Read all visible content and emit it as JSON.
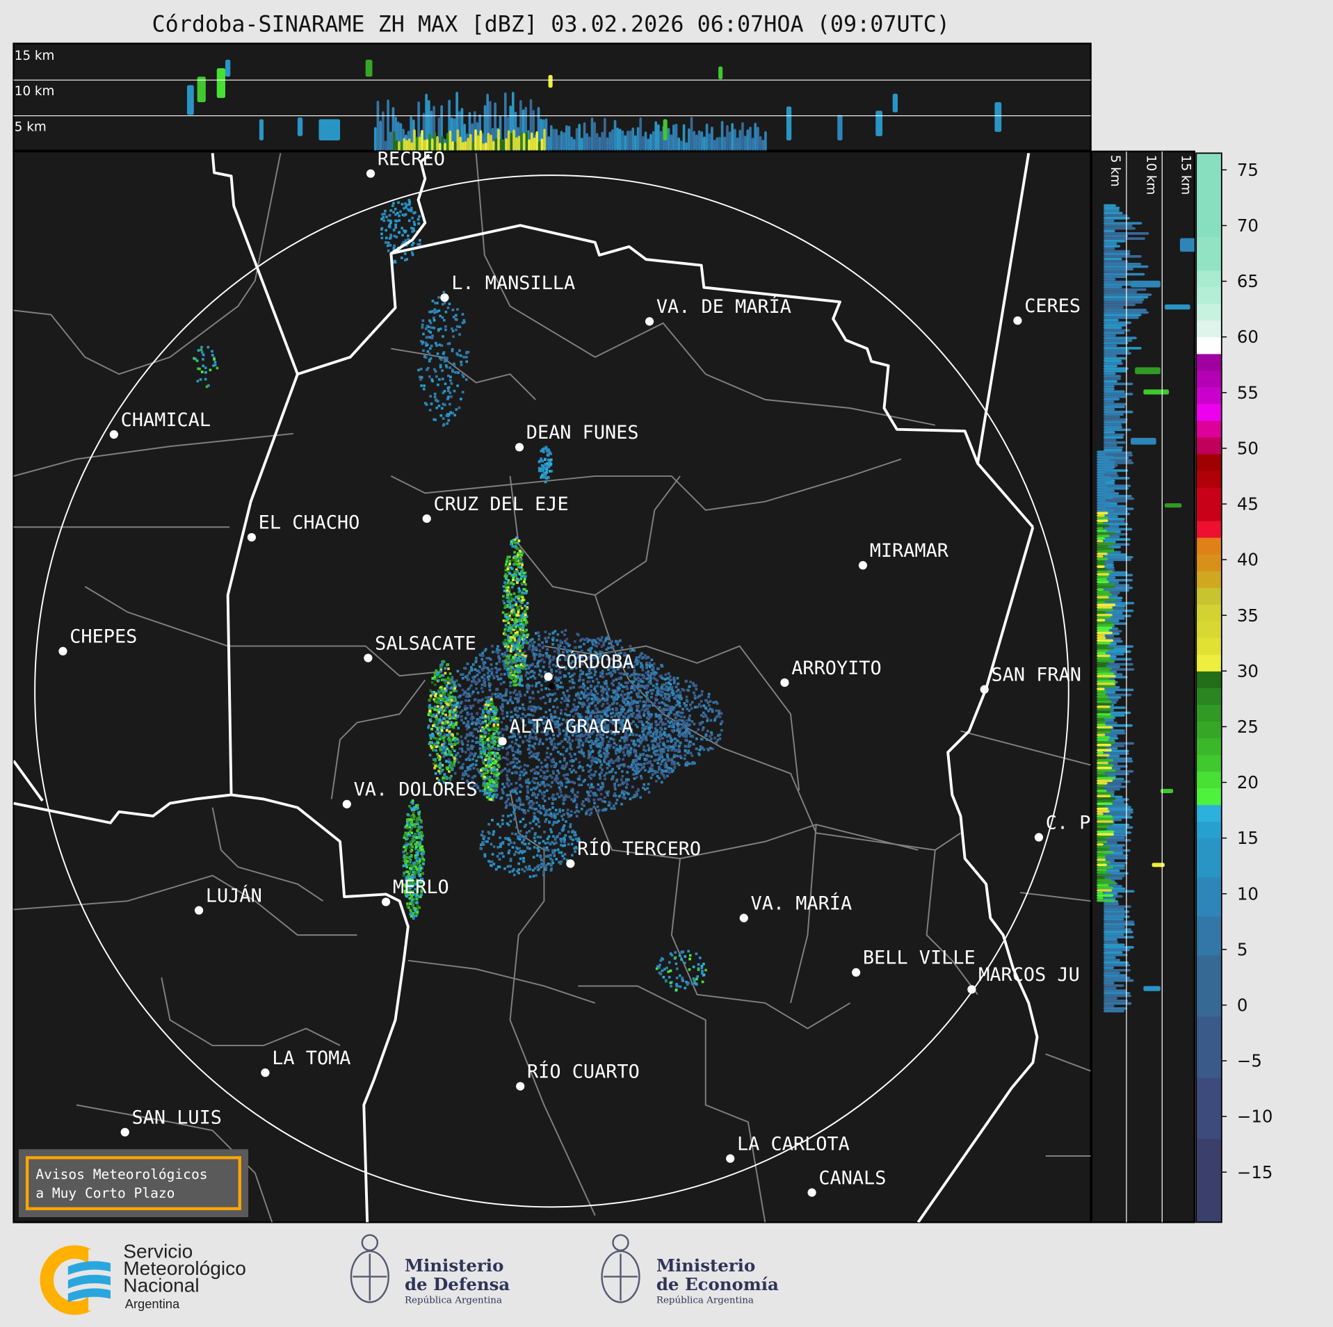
{
  "title": "Córdoba-SINARAME ZH MAX [dBZ] 03.02.2026 06:07HOA (09:07UTC)",
  "top_panel": {
    "labels": [
      "15 km",
      "10 km",
      "5 km"
    ]
  },
  "side_panel": {
    "labels": [
      "5 km",
      "10 km",
      "15 km"
    ]
  },
  "cities": [
    "RECREO",
    "L. MANSILLA",
    "VA. DE MARÍA",
    "CERES",
    "CHAMICAL",
    "DEAN FUNES",
    "CRUZ DEL EJE",
    "EL CHACHO",
    "MIRAMAR",
    "CHEPES",
    "SALSACATE",
    "CÓRDOBA",
    "ARROYITO",
    "SAN FRAN",
    "ALTA GRACIA",
    "VA. DOLORES",
    "C. P",
    "RÍO TERCERO",
    "MERLO",
    "LUJÁN",
    "VA. MARÍA",
    "BELL VILLE",
    "MARCOS JU",
    "LA TOMA",
    "RÍO CUARTO",
    "SAN LUIS",
    "LA CARLOTA",
    "CANALS"
  ],
  "warning_box": {
    "line1": "Avisos Meteorológicos",
    "line2": "a Muy Corto Plazo",
    "border_color": "#ffa500"
  },
  "colorbar": {
    "unit": "dBZ",
    "min": -19.5,
    "max": 76.5,
    "ticks": [
      "75",
      "70",
      "65",
      "60",
      "55",
      "50",
      "45",
      "40",
      "35",
      "30",
      "25",
      "20",
      "15",
      "10",
      "5",
      "0",
      "−5",
      "−10",
      "−15"
    ],
    "tick_values": [
      75,
      70,
      65,
      60,
      55,
      50,
      45,
      40,
      35,
      30,
      25,
      20,
      15,
      10,
      5,
      0,
      -5,
      -10,
      -15
    ],
    "bands": [
      [
        -19.5,
        -12,
        "#3b3f6b"
      ],
      [
        -12,
        -6.5,
        "#3c4b7b"
      ],
      [
        -6.5,
        -1,
        "#3a5a8a"
      ],
      [
        -1,
        4.5,
        "#376995"
      ],
      [
        4.5,
        8,
        "#3377a8"
      ],
      [
        8,
        11.5,
        "#2e85b8"
      ],
      [
        11.5,
        15,
        "#2995c4"
      ],
      [
        15,
        16.5,
        "#27a0d0"
      ],
      [
        16.5,
        18,
        "#2cb0dc"
      ],
      [
        18,
        19.5,
        "#4ef23c"
      ],
      [
        19.5,
        21,
        "#48e034"
      ],
      [
        21,
        22.5,
        "#40c82e"
      ],
      [
        22.5,
        24,
        "#3ab82a"
      ],
      [
        24,
        25.5,
        "#34a826"
      ],
      [
        25.5,
        27,
        "#319a24"
      ],
      [
        27,
        28.5,
        "#2b8520"
      ],
      [
        28.5,
        30,
        "#246e1a"
      ],
      [
        30,
        31.5,
        "#eeee3c"
      ],
      [
        31.5,
        33,
        "#e0e035"
      ],
      [
        33,
        34.5,
        "#d8d832"
      ],
      [
        34.5,
        36,
        "#d2d232"
      ],
      [
        36,
        37.5,
        "#c8c430"
      ],
      [
        37.5,
        39,
        "#d0a820"
      ],
      [
        39,
        40.5,
        "#d89018"
      ],
      [
        40.5,
        42,
        "#e08018"
      ],
      [
        42,
        43.5,
        "#ee1030"
      ],
      [
        43.5,
        46.5,
        "#c80018"
      ],
      [
        46.5,
        48,
        "#b00008"
      ],
      [
        48,
        49.5,
        "#a00000"
      ],
      [
        49.5,
        51,
        "#c0005a"
      ],
      [
        51,
        52.5,
        "#dd0099"
      ],
      [
        52.5,
        54,
        "#ee00ee"
      ],
      [
        54,
        55.5,
        "#cc00cc"
      ],
      [
        55.5,
        57,
        "#b400b4"
      ],
      [
        57,
        58.5,
        "#a000a0"
      ],
      [
        58.5,
        60,
        "#ffffff"
      ],
      [
        60,
        61.5,
        "#dff5ec"
      ],
      [
        61.5,
        63,
        "#c7f2e0"
      ],
      [
        63,
        64.5,
        "#b4eed6"
      ],
      [
        64.5,
        66,
        "#a8eccf"
      ],
      [
        66,
        69,
        "#92e2c4"
      ],
      [
        69,
        76.5,
        "#88dfbf"
      ]
    ]
  },
  "footer": {
    "smn": {
      "line1": "Servicio",
      "line2": "Meteorológico",
      "line3": "Nacional",
      "line4": "Argentina"
    },
    "defensa": {
      "line1": "Ministerio",
      "line2": "de Defensa",
      "line3": "República Argentina"
    },
    "economia": {
      "line1": "Ministerio",
      "line2": "de Economía",
      "line3": "República Argentina"
    }
  },
  "colors": {
    "background": "#e6e6e6",
    "map": "#1a1a1a",
    "borders": "#ffffff",
    "departments": "#808080",
    "smn_orange": "#ffb000",
    "smn_blue": "#2aa6df",
    "ministry_navy": "#2d3558"
  }
}
